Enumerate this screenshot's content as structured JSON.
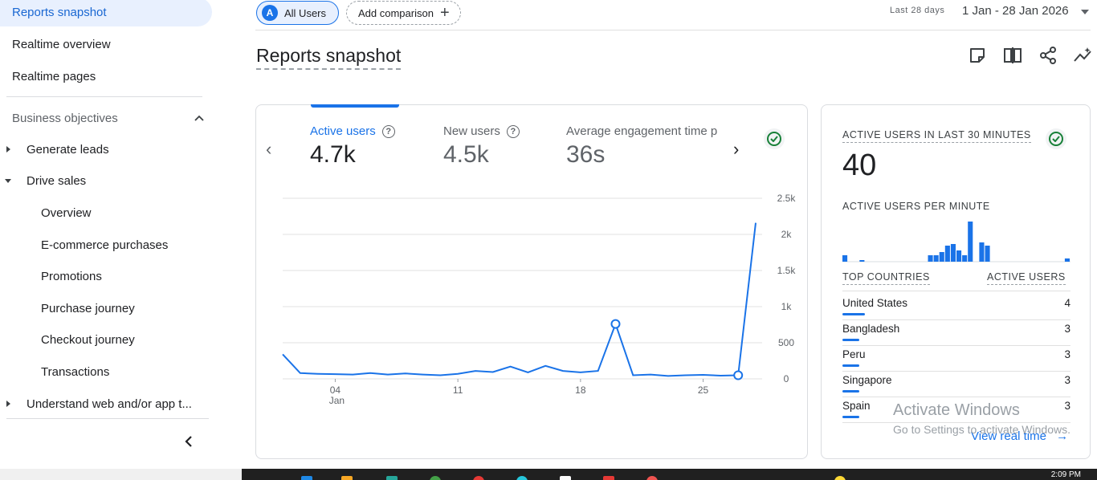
{
  "sidebar": {
    "items": [
      {
        "label": "Reports snapshot"
      },
      {
        "label": "Realtime overview"
      },
      {
        "label": "Realtime pages"
      }
    ],
    "section_title": "Business objectives",
    "groups": [
      {
        "label": "Generate leads"
      },
      {
        "label": "Drive sales"
      }
    ],
    "sub_items": [
      {
        "label": "Overview"
      },
      {
        "label": "E-commerce purchases"
      },
      {
        "label": "Promotions"
      },
      {
        "label": "Purchase journey"
      },
      {
        "label": "Checkout journey"
      },
      {
        "label": "Transactions"
      }
    ],
    "last_group": "Understand web and/or app t..."
  },
  "header": {
    "audience_initial": "A",
    "audience_label": "All Users",
    "add_comparison": "Add comparison",
    "date_label": "Last 28 days",
    "date_range": "1 Jan - 28 Jan 2026"
  },
  "page": {
    "title": "Reports snapshot"
  },
  "metrics": [
    {
      "label": "Active users",
      "value": "4.7k"
    },
    {
      "label": "New users",
      "value": "4.5k"
    },
    {
      "label": "Average engagement time p",
      "value": "36s"
    }
  ],
  "chart_data": {
    "type": "line",
    "y_ticks": [
      "2.5k",
      "2k",
      "1.5k",
      "1k",
      "500",
      "0"
    ],
    "ylim": [
      0,
      2500
    ],
    "x_ticks": [
      {
        "label": "04",
        "sub": "Jan",
        "index": 3
      },
      {
        "label": "11",
        "index": 10
      },
      {
        "label": "18",
        "index": 17
      },
      {
        "label": "25",
        "index": 24
      }
    ],
    "series": [
      {
        "values": [
          340,
          80,
          70,
          65,
          60,
          80,
          60,
          75,
          60,
          50,
          70,
          110,
          95,
          170,
          90,
          180,
          110,
          90,
          110,
          760,
          50,
          60,
          40,
          50,
          55,
          45,
          50,
          2160
        ]
      }
    ],
    "highlight_indices": [
      19,
      26
    ],
    "color": "#1a73e8"
  },
  "side_card": {
    "title": "ACTIVE USERS IN LAST 30 MINUTES",
    "value": "40",
    "per_minute_title": "ACTIVE USERS PER MINUTE",
    "per_minute": [
      2,
      0,
      0,
      0.5,
      0,
      0,
      0,
      0,
      0,
      0,
      0,
      0,
      0,
      0,
      0,
      2,
      2,
      3,
      5,
      5.5,
      3.5,
      2,
      12.5,
      0,
      6,
      5,
      0,
      0,
      0,
      0,
      0,
      0,
      0,
      0,
      0,
      0,
      0,
      0,
      0,
      1
    ],
    "countries_header": "TOP COUNTRIES",
    "users_header": "ACTIVE USERS",
    "countries": [
      {
        "name": "United States",
        "count": "4",
        "share": 1.0
      },
      {
        "name": "Bangladesh",
        "count": "3",
        "share": 0.75
      },
      {
        "name": "Peru",
        "count": "3",
        "share": 0.75
      },
      {
        "name": "Singapore",
        "count": "3",
        "share": 0.75
      },
      {
        "name": "Spain",
        "count": "3",
        "share": 0.75
      }
    ],
    "view_link": "View real time"
  },
  "watermark": {
    "line1": "Activate Windows",
    "line2": "Go to Settings to activate Windows."
  },
  "taskbar": {
    "time": "2:09 PM"
  }
}
